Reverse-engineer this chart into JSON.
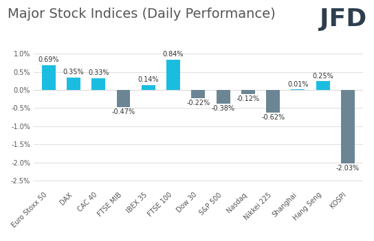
{
  "title": "Major Stock Indices (Daily Performance)",
  "categories": [
    "Euro Stoxx 50",
    "DAX",
    "CAC 40",
    "FTSE MIB",
    "IBEX 35",
    "FTSE 100",
    "Dow 30",
    "S&P 500",
    "Nasdaq",
    "Nikkei 225",
    "Shanghai",
    "Hang Seng",
    "KOSPI"
  ],
  "values": [
    0.69,
    0.35,
    0.33,
    -0.47,
    0.14,
    0.84,
    -0.22,
    -0.38,
    -0.12,
    -0.62,
    0.01,
    0.25,
    -2.03
  ],
  "positive_color": "#1ABDE0",
  "negative_color": "#6B8594",
  "background_color": "#FFFFFF",
  "title_fontsize": 14,
  "label_fontsize": 7,
  "tick_fontsize": 7,
  "ylim": [
    -2.7,
    1.15
  ],
  "yticks": [
    -2.5,
    -2.0,
    -1.5,
    -1.0,
    -0.5,
    0.0,
    0.5,
    1.0
  ],
  "grid_color": "#D8D8D8",
  "logo_text": "JFD",
  "logo_fontsize": 26,
  "logo_color": "#2D3E4E"
}
